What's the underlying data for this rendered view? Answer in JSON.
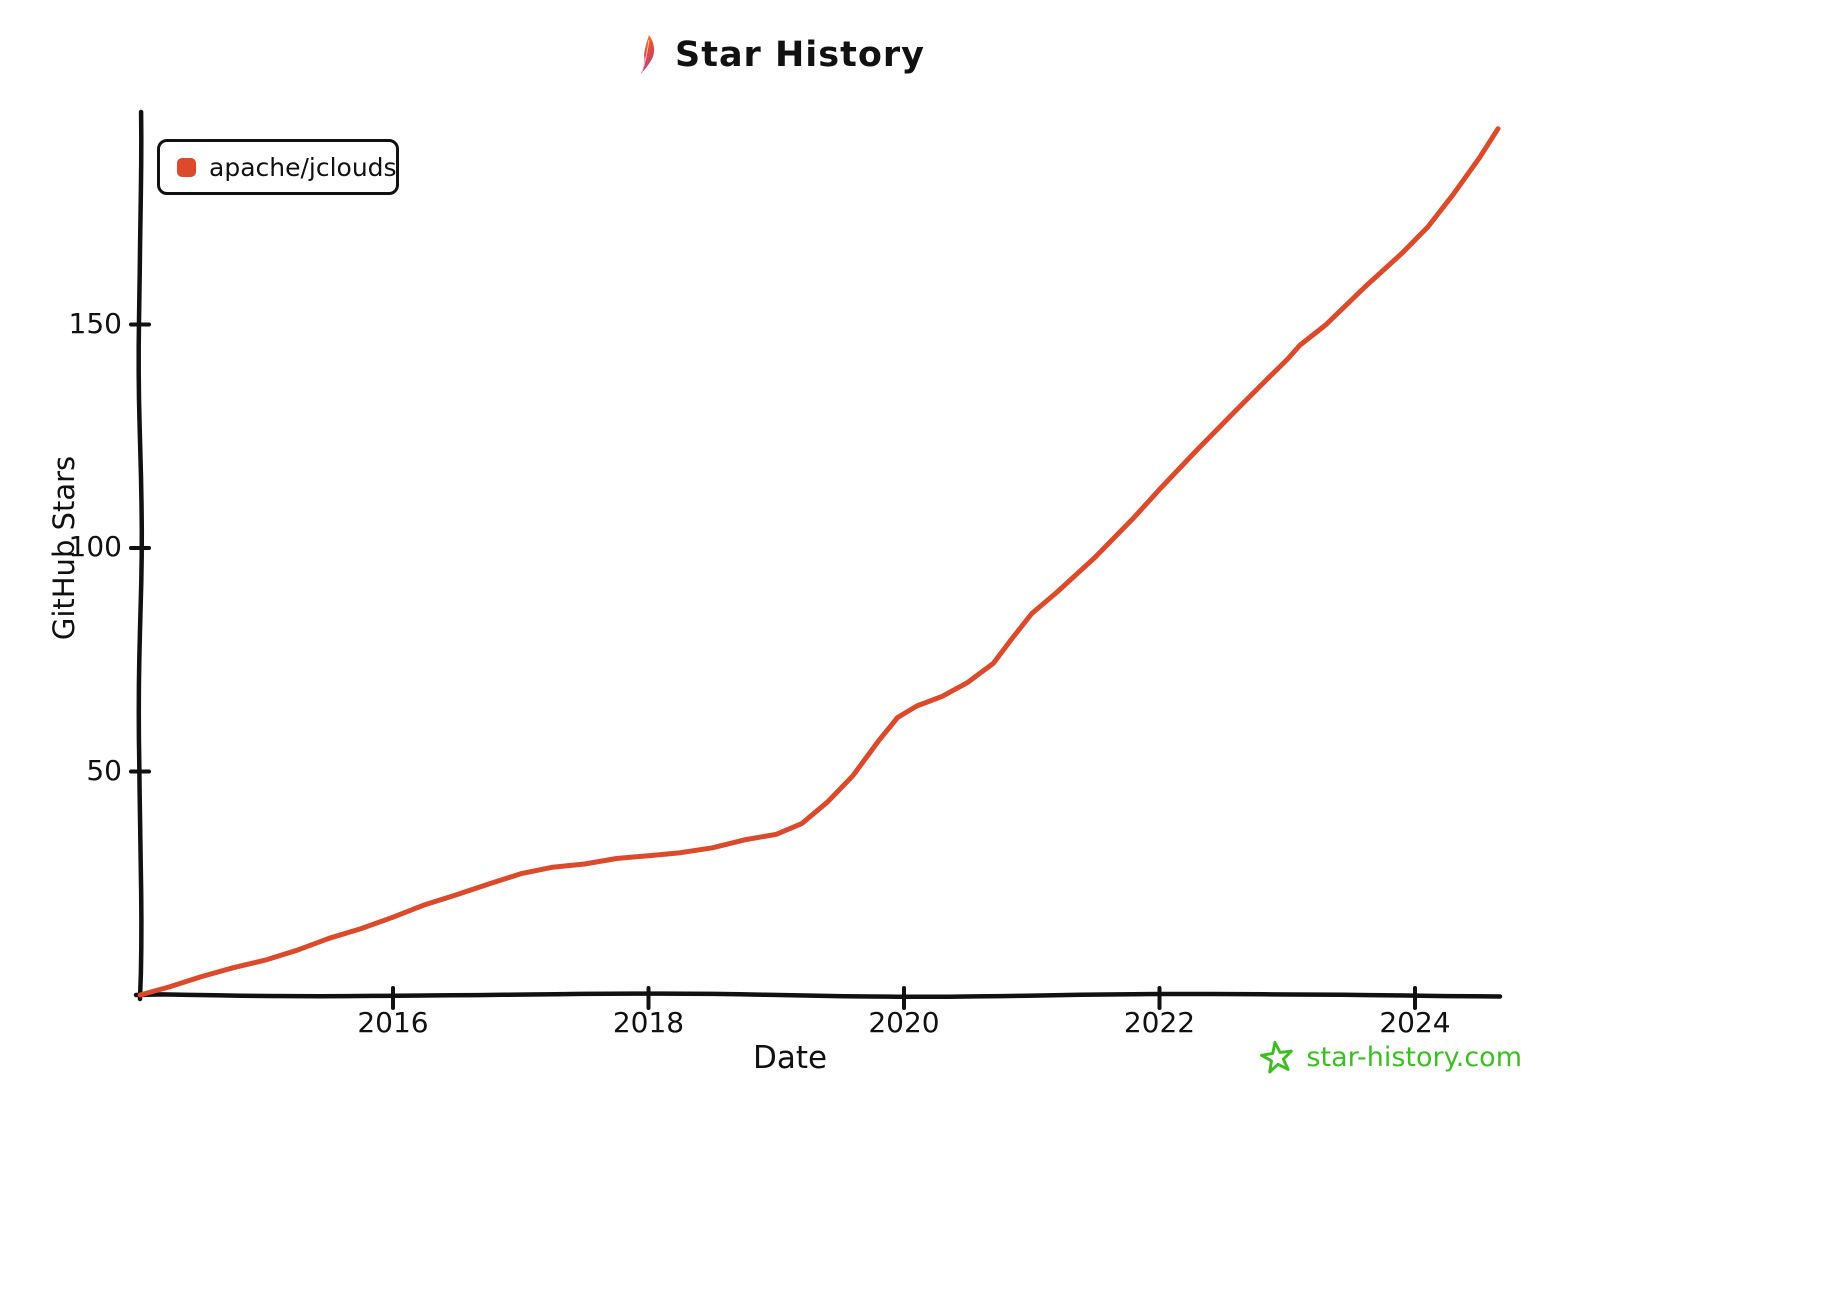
{
  "page": {
    "title": "Star History",
    "footer_site": "star-history.com"
  },
  "legend": {
    "items": [
      {
        "label": "apache/jclouds",
        "color": "#DB4A2B"
      }
    ]
  },
  "colors": {
    "line": "#DB4A2B",
    "axis": "#111111",
    "footer_green": "#3DBE22"
  },
  "chart_data": {
    "type": "line",
    "title": "Star History",
    "xlabel": "Date",
    "ylabel": "GitHub Stars",
    "x_tick_labels": [
      "2016",
      "2018",
      "2020",
      "2022",
      "2024"
    ],
    "x_tick_values": [
      2016,
      2018,
      2020,
      2022,
      2024
    ],
    "y_tick_labels": [
      "50",
      "100",
      "150"
    ],
    "y_tick_values": [
      50,
      100,
      150
    ],
    "xlim": [
      2014.0,
      2024.75
    ],
    "ylim": [
      0,
      198
    ],
    "grid": false,
    "legend_position": "top-left",
    "series": [
      {
        "name": "apache/jclouds",
        "color": "#DB4A2B",
        "x_unit": "decimal_year",
        "points": [
          [
            2014.02,
            0
          ],
          [
            2014.25,
            2
          ],
          [
            2014.5,
            4
          ],
          [
            2014.75,
            6
          ],
          [
            2015.0,
            8
          ],
          [
            2015.25,
            10
          ],
          [
            2015.5,
            12.5
          ],
          [
            2015.75,
            15
          ],
          [
            2016.0,
            17.5
          ],
          [
            2016.25,
            20
          ],
          [
            2016.5,
            22.5
          ],
          [
            2016.75,
            25
          ],
          [
            2017.0,
            27
          ],
          [
            2017.25,
            28.5
          ],
          [
            2017.5,
            29.5
          ],
          [
            2017.75,
            30.5
          ],
          [
            2018.0,
            31
          ],
          [
            2018.25,
            32
          ],
          [
            2018.5,
            33
          ],
          [
            2018.75,
            34.5
          ],
          [
            2019.0,
            36
          ],
          [
            2019.2,
            38.5
          ],
          [
            2019.4,
            43
          ],
          [
            2019.6,
            49
          ],
          [
            2019.8,
            57
          ],
          [
            2019.95,
            62
          ],
          [
            2020.1,
            64.5
          ],
          [
            2020.3,
            67
          ],
          [
            2020.5,
            70
          ],
          [
            2020.7,
            74
          ],
          [
            2020.85,
            80
          ],
          [
            2021.0,
            85.5
          ],
          [
            2021.2,
            90
          ],
          [
            2021.5,
            98
          ],
          [
            2021.8,
            107
          ],
          [
            2022.0,
            113
          ],
          [
            2022.3,
            122
          ],
          [
            2022.6,
            131
          ],
          [
            2022.85,
            138
          ],
          [
            2023.0,
            142
          ],
          [
            2023.1,
            145.5
          ],
          [
            2023.3,
            150
          ],
          [
            2023.6,
            158
          ],
          [
            2023.9,
            166
          ],
          [
            2024.1,
            172
          ],
          [
            2024.3,
            179
          ],
          [
            2024.5,
            187
          ],
          [
            2024.65,
            194
          ]
        ]
      }
    ]
  }
}
